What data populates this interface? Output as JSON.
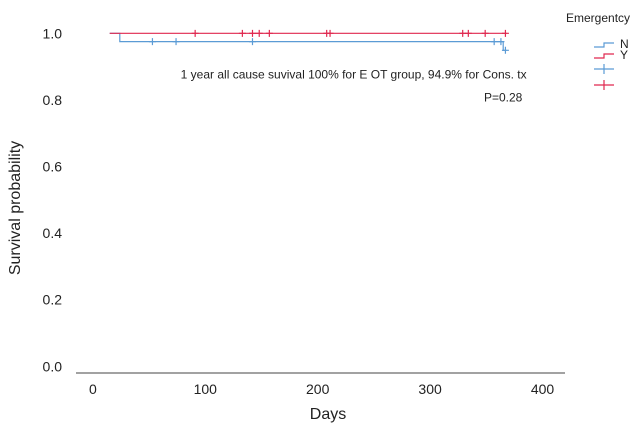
{
  "chart_data": {
    "type": "line",
    "subtype": "kaplan-meier",
    "xlabel": "Days",
    "ylabel": "Survival probability",
    "xlim": [
      -15,
      420
    ],
    "ylim": [
      -0.02,
      1.04
    ],
    "xticks": [
      0,
      100,
      200,
      300,
      400
    ],
    "yticks": [
      0.0,
      0.2,
      0.4,
      0.6,
      0.8,
      1.0
    ],
    "xtick_labels": [
      "0",
      "100",
      "200",
      "300",
      "400"
    ],
    "ytick_labels": [
      "0.0",
      "0.2",
      "0.4",
      "0.6",
      "0.8",
      "1.0"
    ],
    "grid": false,
    "annotations": [
      {
        "text": "1 year all cause suvival 100% for E OT group, 94.9% for Cons. tx",
        "x": 232,
        "y": 0.865
      },
      {
        "text": "P=0.28",
        "x": 365,
        "y": 0.795
      }
    ],
    "legend": {
      "title": "Emergentcy OT",
      "placement": "top-right",
      "entries": [
        {
          "label": "N",
          "color": "#5b9bd5"
        },
        {
          "label": "Y",
          "color": "#e0284f"
        }
      ]
    },
    "series": [
      {
        "name": "N",
        "color": "#5b9bd5",
        "steps": [
          [
            15,
            1.0
          ],
          [
            24,
            1.0
          ],
          [
            24,
            0.975
          ],
          [
            365,
            0.975
          ],
          [
            365,
            0.949
          ],
          [
            368,
            0.949
          ]
        ],
        "censored": [
          [
            53,
            0.975
          ],
          [
            74,
            0.975
          ],
          [
            142,
            0.975
          ],
          [
            357,
            0.975
          ],
          [
            363,
            0.975
          ],
          [
            367,
            0.949
          ]
        ]
      },
      {
        "name": "Y",
        "color": "#e0284f",
        "steps": [
          [
            15,
            1.0
          ],
          [
            368,
            1.0
          ]
        ],
        "censored": [
          [
            91,
            1.0
          ],
          [
            133,
            1.0
          ],
          [
            142,
            1.0
          ],
          [
            148,
            1.0
          ],
          [
            157,
            1.0
          ],
          [
            208,
            1.0
          ],
          [
            211,
            1.0
          ],
          [
            329,
            1.0
          ],
          [
            334,
            1.0
          ],
          [
            349,
            1.0
          ],
          [
            367,
            1.0
          ]
        ]
      }
    ]
  }
}
